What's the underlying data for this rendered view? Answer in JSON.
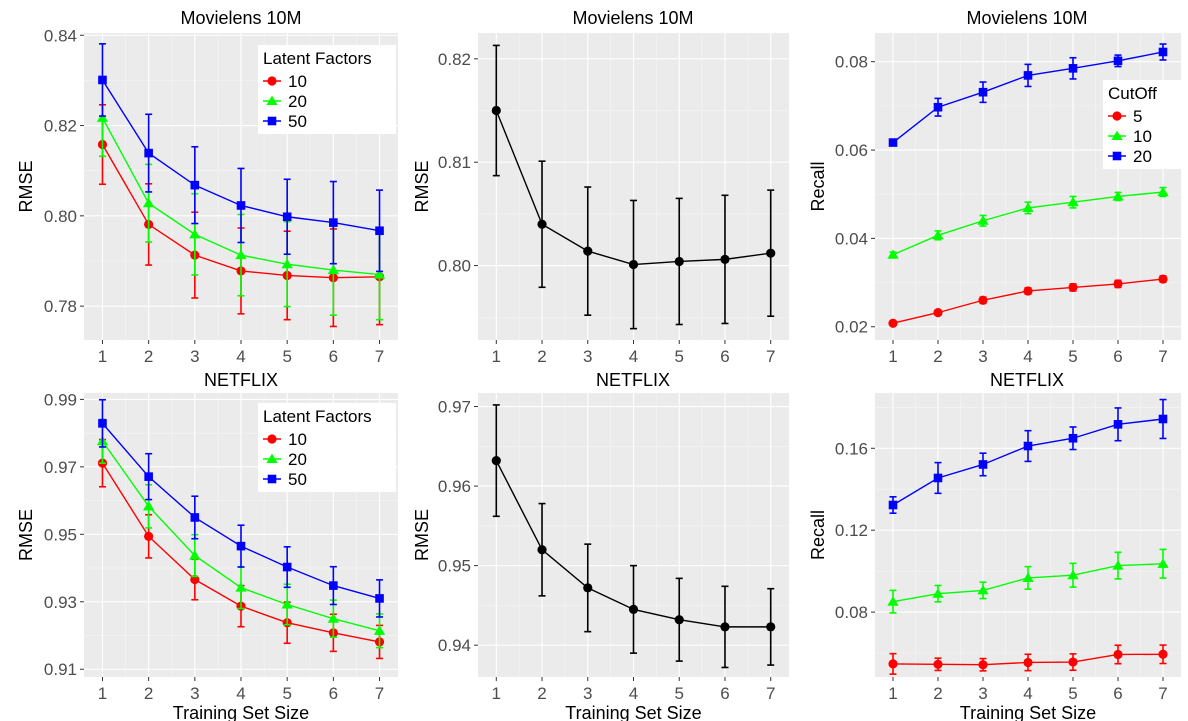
{
  "chart_data": [
    {
      "type": "line",
      "title": "Movielens 10M",
      "xlabel": "",
      "ylabel": "RMSE",
      "x": [
        1,
        2,
        3,
        4,
        5,
        6,
        7
      ],
      "xticks": [
        "1",
        "2",
        "3",
        "4",
        "5",
        "6",
        "7"
      ],
      "ylim": [
        0.7725,
        0.8405
      ],
      "yticks": [
        0.78,
        0.8,
        0.82,
        0.84
      ],
      "ytick_labels": [
        "0.78",
        "0.80",
        "0.82",
        "0.84"
      ],
      "grid": true,
      "legend": {
        "title": "Latent Factors",
        "position": "top-right"
      },
      "series": [
        {
          "name": "10",
          "color": "#ff0000",
          "marker": "circle",
          "values": [
            0.8158,
            0.7981,
            0.7913,
            0.7878,
            0.7868,
            0.7863,
            0.7865
          ],
          "errors": [
            0.0088,
            0.009,
            0.0095,
            0.0095,
            0.0098,
            0.0108,
            0.0106
          ]
        },
        {
          "name": "20",
          "color": "#00ff00",
          "marker": "triangle",
          "values": [
            0.8217,
            0.8028,
            0.7959,
            0.7913,
            0.7893,
            0.788,
            0.787
          ],
          "errors": [
            0.0085,
            0.0086,
            0.009,
            0.009,
            0.0094,
            0.01,
            0.01
          ]
        },
        {
          "name": "50",
          "color": "#0000ff",
          "marker": "square",
          "values": [
            0.8301,
            0.8139,
            0.8068,
            0.8023,
            0.7998,
            0.7985,
            0.7967
          ],
          "errors": [
            0.008,
            0.0086,
            0.0085,
            0.0082,
            0.0083,
            0.0091,
            0.009
          ]
        }
      ]
    },
    {
      "type": "line",
      "title": "Movielens 10M",
      "xlabel": "",
      "ylabel": "RMSE",
      "x": [
        1,
        2,
        3,
        4,
        5,
        6,
        7
      ],
      "xticks": [
        "1",
        "2",
        "3",
        "4",
        "5",
        "6",
        "7"
      ],
      "ylim": [
        0.7928,
        0.8225
      ],
      "yticks": [
        0.8,
        0.81,
        0.82
      ],
      "ytick_labels": [
        "0.80",
        "0.81",
        "0.82"
      ],
      "grid": true,
      "series": [
        {
          "color": "#000000",
          "marker": "circle",
          "values": [
            0.815,
            0.804,
            0.8014,
            0.8001,
            0.8004,
            0.8006,
            0.8012
          ],
          "errors": [
            0.0063,
            0.0061,
            0.0062,
            0.0062,
            0.0061,
            0.0062,
            0.0061
          ]
        }
      ]
    },
    {
      "type": "line",
      "title": "Movielens 10M",
      "xlabel": "",
      "ylabel": "Recall",
      "x": [
        1,
        2,
        3,
        4,
        5,
        6,
        7
      ],
      "xticks": [
        "1",
        "2",
        "3",
        "4",
        "5",
        "6",
        "7"
      ],
      "ylim": [
        0.017,
        0.0865
      ],
      "yticks": [
        0.02,
        0.04,
        0.06,
        0.08
      ],
      "ytick_labels": [
        "0.02",
        "0.04",
        "0.06",
        "0.08"
      ],
      "grid": true,
      "legend": {
        "title": "CutOff",
        "position": "right"
      },
      "series": [
        {
          "name": "5",
          "color": "#ff0000",
          "marker": "circle",
          "values": [
            0.0208,
            0.0232,
            0.026,
            0.0281,
            0.0289,
            0.0297,
            0.0308
          ],
          "errors": [
            0.0004,
            0.0006,
            0.0007,
            0.0007,
            0.0008,
            0.0008,
            0.0007
          ]
        },
        {
          "name": "10",
          "color": "#00ff00",
          "marker": "triangle",
          "values": [
            0.0363,
            0.0407,
            0.044,
            0.0469,
            0.0482,
            0.0495,
            0.0505
          ],
          "errors": [
            0.0006,
            0.001,
            0.0012,
            0.0013,
            0.0013,
            0.0009,
            0.001
          ]
        },
        {
          "name": "20",
          "color": "#0000ff",
          "marker": "square",
          "values": [
            0.0617,
            0.0697,
            0.0731,
            0.0769,
            0.0785,
            0.0802,
            0.0822
          ],
          "errors": [
            0.0007,
            0.002,
            0.0023,
            0.0025,
            0.0024,
            0.0013,
            0.0018
          ]
        }
      ]
    },
    {
      "type": "line",
      "title": "NETFLIX",
      "xlabel": "Training Set Size",
      "ylabel": "RMSE",
      "x": [
        1,
        2,
        3,
        4,
        5,
        6,
        7
      ],
      "xticks": [
        "1",
        "2",
        "3",
        "4",
        "5",
        "6",
        "7"
      ],
      "ylim": [
        0.9077,
        0.9919
      ],
      "yticks": [
        0.91,
        0.93,
        0.95,
        0.97,
        0.99
      ],
      "ytick_labels": [
        "0.91",
        "0.93",
        "0.95",
        "0.97",
        "0.99"
      ],
      "grid": true,
      "legend": {
        "title": "Latent Factors",
        "position": "top-right"
      },
      "series": [
        {
          "name": "10",
          "color": "#ff0000",
          "marker": "circle",
          "values": [
            0.9711,
            0.9494,
            0.9366,
            0.9287,
            0.9238,
            0.9208,
            0.9181
          ],
          "errors": [
            0.007,
            0.0064,
            0.006,
            0.0061,
            0.0061,
            0.0055,
            0.0049
          ]
        },
        {
          "name": "20",
          "color": "#00ff00",
          "marker": "triangle",
          "values": [
            0.9776,
            0.9583,
            0.9437,
            0.9342,
            0.9292,
            0.925,
            0.9214
          ],
          "errors": [
            0.0065,
            0.0064,
            0.0062,
            0.0062,
            0.006,
            0.0055,
            0.005
          ]
        },
        {
          "name": "50",
          "color": "#0000ff",
          "marker": "square",
          "values": [
            0.9829,
            0.9671,
            0.955,
            0.9465,
            0.9403,
            0.9348,
            0.931
          ],
          "errors": [
            0.007,
            0.0068,
            0.0063,
            0.0062,
            0.006,
            0.0056,
            0.0055
          ]
        }
      ]
    },
    {
      "type": "line",
      "title": "NETFLIX",
      "xlabel": "Training Set Size",
      "ylabel": "RMSE",
      "x": [
        1,
        2,
        3,
        4,
        5,
        6,
        7
      ],
      "xticks": [
        "1",
        "2",
        "3",
        "4",
        "5",
        "6",
        "7"
      ],
      "ylim": [
        0.936,
        0.9717
      ],
      "yticks": [
        0.94,
        0.95,
        0.96,
        0.97
      ],
      "ytick_labels": [
        "0.94",
        "0.95",
        "0.96",
        "0.97"
      ],
      "grid": true,
      "series": [
        {
          "color": "#000000",
          "marker": "circle",
          "values": [
            0.9632,
            0.952,
            0.9472,
            0.9445,
            0.9432,
            0.9423,
            0.9423
          ],
          "errors": [
            0.007,
            0.0058,
            0.0055,
            0.0055,
            0.0052,
            0.0051,
            0.0048
          ]
        }
      ]
    },
    {
      "type": "line",
      "title": "NETFLIX",
      "xlabel": "Training Set Size",
      "ylabel": "Recall",
      "x": [
        1,
        2,
        3,
        4,
        5,
        6,
        7
      ],
      "xticks": [
        "1",
        "2",
        "3",
        "4",
        "5",
        "6",
        "7"
      ],
      "ylim": [
        0.0483,
        0.187
      ],
      "yticks": [
        0.08,
        0.12,
        0.16
      ],
      "ytick_labels": [
        "0.08",
        "0.12",
        "0.16"
      ],
      "grid": true,
      "series": [
        {
          "name": "5",
          "color": "#ff0000",
          "marker": "circle",
          "values": [
            0.0547,
            0.0545,
            0.0543,
            0.0554,
            0.0556,
            0.0593,
            0.0594
          ],
          "errors": [
            0.005,
            0.003,
            0.003,
            0.004,
            0.004,
            0.0045,
            0.0045
          ]
        },
        {
          "name": "10",
          "color": "#00ff00",
          "marker": "triangle",
          "values": [
            0.0851,
            0.089,
            0.0906,
            0.0967,
            0.098,
            0.1027,
            0.1036
          ],
          "errors": [
            0.0055,
            0.004,
            0.004,
            0.0055,
            0.0058,
            0.0065,
            0.007
          ]
        },
        {
          "name": "20",
          "color": "#0000ff",
          "marker": "square",
          "values": [
            0.1323,
            0.1455,
            0.1521,
            0.1611,
            0.1649,
            0.1717,
            0.1743
          ],
          "errors": [
            0.004,
            0.0075,
            0.0055,
            0.0075,
            0.0055,
            0.008,
            0.0095
          ]
        }
      ]
    }
  ]
}
